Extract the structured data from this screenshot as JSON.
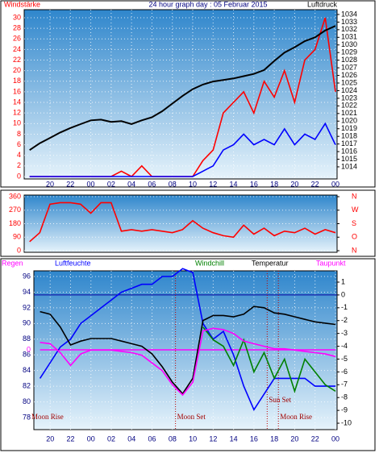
{
  "chart_data": [
    {
      "type": "line",
      "title": "24 hour graph day : 05 Februar 2015",
      "y_label": "Windstärke",
      "y2_label": "Luftdruck",
      "x": [
        -2,
        -1,
        0,
        1,
        2,
        3,
        4,
        5,
        6,
        7,
        8,
        9,
        10,
        11,
        12,
        13,
        14,
        15,
        16,
        17,
        18,
        19,
        20,
        21,
        22,
        23,
        24,
        25,
        26,
        27,
        28
      ],
      "xlim": [
        -2.53,
        28.16
      ],
      "xticks": [
        {
          "value": 0,
          "label": "20"
        },
        {
          "value": 2,
          "label": "22"
        },
        {
          "value": 4,
          "label": "00"
        },
        {
          "value": 6,
          "label": "02"
        },
        {
          "value": 8,
          "label": "04"
        },
        {
          "value": 10,
          "label": "06"
        },
        {
          "value": 12,
          "label": "08"
        },
        {
          "value": 14,
          "label": "10"
        },
        {
          "value": 16,
          "label": "12"
        },
        {
          "value": 18,
          "label": "14"
        },
        {
          "value": 20,
          "label": "16"
        },
        {
          "value": 22,
          "label": "18"
        },
        {
          "value": 24,
          "label": "20"
        },
        {
          "value": 26,
          "label": "22"
        },
        {
          "value": 28,
          "label": "00"
        }
      ],
      "ylim": [
        -0.46,
        31.52
      ],
      "yticks": [
        0,
        2,
        4,
        6,
        8,
        10,
        12,
        14,
        16,
        18,
        20,
        22,
        24,
        26,
        28,
        30
      ],
      "y2lim": [
        1012.41,
        1034.63
      ],
      "y2ticks": [
        1014,
        1015,
        1016,
        1017,
        1018,
        1019,
        1020,
        1021,
        1022,
        1023,
        1024,
        1025,
        1026,
        1027,
        1028,
        1029,
        1030,
        1031,
        1032,
        1033,
        1034
      ],
      "grid": true,
      "series": [
        {
          "color": "#ff0000",
          "values": [
            0,
            0,
            0,
            0,
            0,
            0,
            0,
            0,
            0,
            1,
            0,
            2,
            0,
            0,
            0,
            0,
            0,
            3,
            5,
            12,
            14,
            16,
            12,
            18,
            15,
            20,
            14,
            22,
            24,
            30,
            16
          ]
        },
        {
          "color": "#0000ff",
          "values": [
            0,
            0,
            0,
            0,
            0,
            0,
            0,
            0,
            0,
            0,
            0,
            0,
            0,
            0,
            0,
            0,
            0,
            1,
            2,
            5,
            6,
            8,
            6,
            7,
            6,
            9,
            6,
            8,
            7,
            10,
            6
          ]
        },
        {
          "color": "#000000",
          "axis": "y2",
          "values": [
            1016.2,
            1017.1,
            1017.8,
            1018.5,
            1019.1,
            1019.6,
            1020.1,
            1020.2,
            1019.9,
            1020.0,
            1019.6,
            1020.1,
            1020.5,
            1021.3,
            1022.3,
            1023.3,
            1024.2,
            1024.8,
            1025.2,
            1025.4,
            1025.6,
            1025.9,
            1026.2,
            1026.7,
            1027.9,
            1029.0,
            1029.7,
            1030.5,
            1031.0,
            1031.9,
            1032.5
          ]
        }
      ]
    },
    {
      "type": "line",
      "x": [
        -2,
        -1,
        0,
        1,
        2,
        3,
        4,
        5,
        6,
        7,
        8,
        9,
        10,
        11,
        12,
        13,
        14,
        15,
        16,
        17,
        18,
        19,
        20,
        21,
        22,
        23,
        24,
        25,
        26,
        27,
        28
      ],
      "xlim": [
        -2.53,
        28.16
      ],
      "ylim": [
        -10.7,
        370.7
      ],
      "yticks": [
        0,
        90,
        180,
        270,
        360
      ],
      "y2lim": [
        -10.7,
        370.7
      ],
      "y2ticks": [
        {
          "value": 360,
          "label": "N"
        },
        {
          "value": 270,
          "label": "W"
        },
        {
          "value": 180,
          "label": "S"
        },
        {
          "value": 90,
          "label": "O"
        },
        {
          "value": 0,
          "label": "N"
        }
      ],
      "grid": true,
      "series": [
        {
          "color": "#ff0000",
          "values": [
            60,
            120,
            310,
            320,
            320,
            310,
            250,
            320,
            320,
            130,
            140,
            130,
            140,
            130,
            120,
            140,
            200,
            150,
            120,
            100,
            90,
            170,
            110,
            150,
            100,
            130,
            120,
            150,
            110,
            140,
            120
          ]
        }
      ]
    },
    {
      "type": "line",
      "x": [
        -1,
        0,
        1,
        2,
        3,
        4,
        5,
        6,
        7,
        8,
        9,
        10,
        11,
        12,
        13,
        14,
        15,
        16,
        17,
        18,
        19,
        20,
        21,
        22,
        23,
        24,
        25,
        26,
        27,
        28
      ],
      "xlim": [
        -1.6,
        28.16
      ],
      "xticks": [
        {
          "value": 0,
          "label": "20"
        },
        {
          "value": 2,
          "label": "22"
        },
        {
          "value": 4,
          "label": "00"
        },
        {
          "value": 6,
          "label": "02"
        },
        {
          "value": 8,
          "label": "04"
        },
        {
          "value": 10,
          "label": "06"
        },
        {
          "value": 12,
          "label": "08"
        },
        {
          "value": 14,
          "label": "10"
        },
        {
          "value": 16,
          "label": "12"
        },
        {
          "value": 18,
          "label": "14"
        },
        {
          "value": 20,
          "label": "16"
        },
        {
          "value": 22,
          "label": "18"
        },
        {
          "value": 24,
          "label": "20"
        },
        {
          "value": 26,
          "label": "22"
        },
        {
          "value": 28,
          "label": "00"
        }
      ],
      "ylim": [
        76.46,
        96.72
      ],
      "yticks": [
        78,
        80,
        82,
        84,
        86,
        88,
        90,
        92,
        94,
        96
      ],
      "y2lim": [
        -10.5,
        1.88
      ],
      "y2ticks": [
        1,
        0,
        -1,
        -2,
        -3,
        -4,
        -5,
        -6,
        -7,
        -8,
        -9,
        -10
      ],
      "y3lim": [
        -1,
        0.99
      ],
      "y3ticks": [
        0
      ],
      "grid": true,
      "zero_line": true,
      "series": [
        {
          "name": "Regen",
          "color": "#ff00ff",
          "axis": "y3",
          "values": [
            0,
            0,
            0,
            0,
            0,
            0,
            0,
            0,
            0,
            0,
            0,
            0,
            0,
            0,
            0,
            0,
            0,
            0,
            0,
            0,
            0,
            0,
            0,
            0,
            0,
            0,
            0,
            0,
            0,
            0
          ]
        },
        {
          "name": "Luftfeuchte",
          "color": "#0000ff",
          "values": [
            83,
            85,
            87,
            88,
            90,
            91,
            92,
            93,
            94,
            94.5,
            95,
            95,
            96,
            96,
            97,
            96.5,
            90,
            88,
            89,
            86,
            82,
            79,
            81,
            83,
            83,
            83,
            83,
            82,
            82,
            82
          ]
        },
        {
          "name": "Windchill",
          "color": "#008000",
          "axis": "y2",
          "values": [
            null,
            null,
            null,
            null,
            null,
            null,
            null,
            null,
            null,
            null,
            null,
            null,
            null,
            null,
            null,
            null,
            -2.5,
            -3.5,
            -4.0,
            -5.5,
            -3.5,
            -6.0,
            -4.5,
            -6.5,
            -5.0,
            -7.5,
            -5.0,
            -6.0,
            -7.0,
            -7.5
          ]
        },
        {
          "name": "Temperatur",
          "color": "#000000",
          "axis": "y2",
          "values": [
            -1.3,
            -1.5,
            -2.5,
            -3.9,
            -3.6,
            -3.4,
            -3.4,
            -3.4,
            -3.6,
            -3.8,
            -4.0,
            -4.6,
            -5.6,
            -6.8,
            -7.7,
            -6.5,
            -2.0,
            -1.6,
            -1.6,
            -1.7,
            -1.5,
            -0.9,
            -1.0,
            -1.4,
            -1.5,
            -1.7,
            -1.9,
            -2.1,
            -2.2,
            -2.3
          ]
        },
        {
          "name": "Taupunkt",
          "color": "#ff00ff",
          "axis": "y2",
          "values": [
            -3.7,
            -3.8,
            -4.5,
            -5.5,
            -4.6,
            -4.3,
            -4.3,
            -4.3,
            -4.4,
            -4.5,
            -4.7,
            -5.3,
            -5.9,
            -7.0,
            -7.8,
            -6.8,
            -2.8,
            -2.6,
            -2.7,
            -3.0,
            -3.6,
            -3.8,
            -4.0,
            -4.2,
            -4.2,
            -4.3,
            -4.4,
            -4.5,
            -4.6,
            -4.8
          ]
        }
      ],
      "annotations": [
        {
          "text": "Moon Rise",
          "x": -2
        },
        {
          "text": "Moon Set",
          "x": 12.3
        },
        {
          "text": "Sun Set",
          "x": 21.3
        },
        {
          "text": "Moon Rise",
          "x": 22.4
        }
      ]
    }
  ]
}
